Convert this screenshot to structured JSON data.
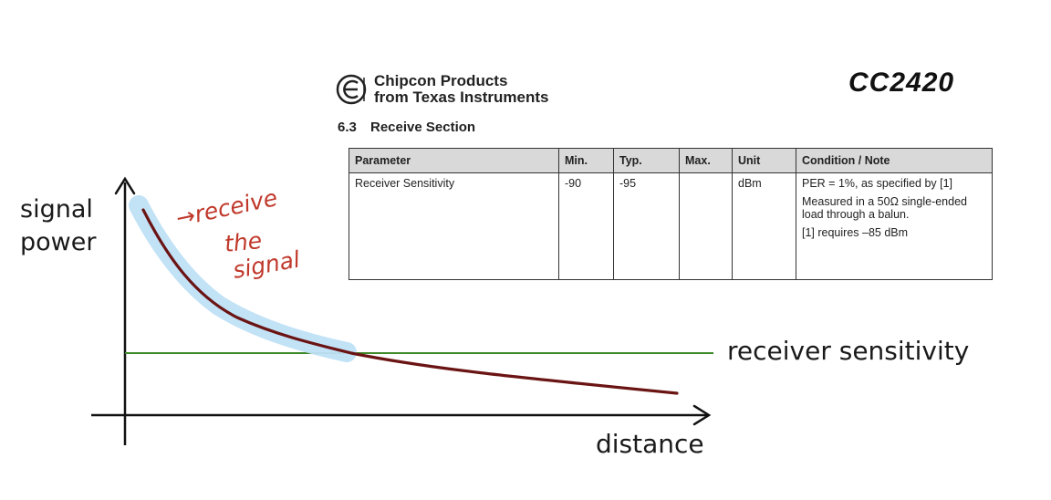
{
  "annotations": {
    "y_axis_label": "signal\npower",
    "x_axis_label": "distance",
    "threshold_label": "receiver sensitivity",
    "handwritten_note": [
      "→receive",
      "the",
      "signal"
    ]
  },
  "document": {
    "logo_line1": "Chipcon Products",
    "logo_line2": "from Texas Instruments",
    "model": "CC2420",
    "section_number": "6.3",
    "section_title": "Receive Section",
    "table": {
      "headers": [
        "Parameter",
        "Min.",
        "Typ.",
        "Max.",
        "Unit",
        "Condition / Note"
      ],
      "row": {
        "parameter": "Receiver Sensitivity",
        "min": "-90",
        "typ": "-95",
        "max": "",
        "unit": "dBm",
        "notes": [
          "PER = 1%, as specified by [1]",
          "Measured in a 50Ω single-ended load through a balun.",
          "[1] requires –85 dBm"
        ]
      }
    }
  },
  "colors": {
    "curve": "#6b1414",
    "threshold": "#3f8a2a",
    "highlight": "#bfe0f5",
    "handwriting": "#c0392b",
    "axis": "#111111"
  }
}
